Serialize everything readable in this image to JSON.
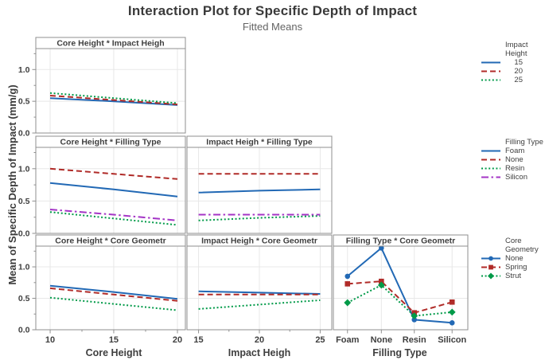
{
  "title": "Interaction Plot for Specific Depth of Impact",
  "subtitle": "Fitted Means",
  "ylabel": "Mean of Specific Depth of Impact (mm/g)",
  "colors": {
    "blue": "#2269B5",
    "red": "#B02B28",
    "green": "#009A48",
    "purple": "#A435C6",
    "panel_border": "#8F8F8F",
    "grid": "#E8E8E8",
    "text_dark": "#3F3F3F",
    "text_gray": "#646464"
  },
  "y_axis": {
    "tick_labels": [
      "0.0",
      "0.5",
      "1.0"
    ],
    "tick_values": [
      0.0,
      0.5,
      1.0
    ],
    "minor_tick_values": [
      0.25,
      0.75,
      1.25
    ],
    "ylim": [
      0,
      1.33
    ],
    "gridlines": [
      0.5,
      1.0
    ]
  },
  "x_axes": [
    {
      "title": "Core Height",
      "ticks": [
        "10",
        "15",
        "20"
      ]
    },
    {
      "title": "Impact Heigh",
      "ticks": [
        "15",
        "20",
        "25"
      ]
    },
    {
      "title": "Filling Type",
      "ticks": [
        "Foam",
        "None",
        "Resin",
        "Silicon"
      ]
    }
  ],
  "chart_data": [
    {
      "type": "line",
      "title": "Core Height * Impact Heigh",
      "row": 0,
      "col": 0,
      "x": [
        10,
        15,
        20
      ],
      "series": [
        {
          "name": "15",
          "color": "blue",
          "dash": "solid",
          "marker": "none",
          "values": [
            0.55,
            0.5,
            0.44
          ]
        },
        {
          "name": "20",
          "color": "red",
          "dash": "dashed",
          "marker": "none",
          "values": [
            0.59,
            0.52,
            0.45
          ]
        },
        {
          "name": "25",
          "color": "green",
          "dash": "dotted",
          "marker": "none",
          "values": [
            0.63,
            0.55,
            0.47
          ]
        }
      ]
    },
    {
      "type": "line",
      "title": "Core Height * Filling Type",
      "row": 1,
      "col": 0,
      "x": [
        10,
        15,
        20
      ],
      "series": [
        {
          "name": "Foam",
          "color": "blue",
          "dash": "solid",
          "marker": "none",
          "values": [
            0.78,
            0.68,
            0.57
          ]
        },
        {
          "name": "None",
          "color": "red",
          "dash": "dashed",
          "marker": "none",
          "values": [
            1.0,
            0.92,
            0.84
          ]
        },
        {
          "name": "Resin",
          "color": "green",
          "dash": "dotted",
          "marker": "none",
          "values": [
            0.33,
            0.23,
            0.13
          ]
        },
        {
          "name": "Silicon",
          "color": "purple",
          "dash": "dashdot",
          "marker": "none",
          "values": [
            0.37,
            0.29,
            0.2
          ]
        }
      ]
    },
    {
      "type": "line",
      "title": "Impact Heigh * Filling Type",
      "row": 1,
      "col": 1,
      "x": [
        15,
        20,
        25
      ],
      "series": [
        {
          "name": "Foam",
          "color": "blue",
          "dash": "solid",
          "marker": "none",
          "values": [
            0.63,
            0.66,
            0.68
          ]
        },
        {
          "name": "None",
          "color": "red",
          "dash": "dashed",
          "marker": "none",
          "values": [
            0.92,
            0.92,
            0.92
          ]
        },
        {
          "name": "Resin",
          "color": "green",
          "dash": "dotted",
          "marker": "none",
          "values": [
            0.2,
            0.24,
            0.27
          ]
        },
        {
          "name": "Silicon",
          "color": "purple",
          "dash": "dashdot",
          "marker": "none",
          "values": [
            0.29,
            0.29,
            0.29
          ]
        }
      ]
    },
    {
      "type": "line",
      "title": "Core Height * Core Geometr",
      "row": 2,
      "col": 0,
      "x": [
        10,
        15,
        20
      ],
      "series": [
        {
          "name": "None",
          "color": "blue",
          "dash": "solid",
          "marker": "none",
          "values": [
            0.7,
            0.6,
            0.49
          ]
        },
        {
          "name": "Spring",
          "color": "red",
          "dash": "dashed",
          "marker": "none",
          "values": [
            0.66,
            0.56,
            0.46
          ]
        },
        {
          "name": "Strut",
          "color": "green",
          "dash": "dotted",
          "marker": "none",
          "values": [
            0.51,
            0.41,
            0.31
          ]
        }
      ]
    },
    {
      "type": "line",
      "title": "Impact Heigh * Core Geometr",
      "row": 2,
      "col": 1,
      "x": [
        15,
        20,
        25
      ],
      "series": [
        {
          "name": "None",
          "color": "blue",
          "dash": "solid",
          "marker": "none",
          "values": [
            0.61,
            0.59,
            0.57
          ]
        },
        {
          "name": "Spring",
          "color": "red",
          "dash": "dashed",
          "marker": "none",
          "values": [
            0.56,
            0.56,
            0.56
          ]
        },
        {
          "name": "Strut",
          "color": "green",
          "dash": "dotted",
          "marker": "none",
          "values": [
            0.33,
            0.4,
            0.47
          ]
        }
      ]
    },
    {
      "type": "line",
      "title": "Filling Type * Core Geometr",
      "row": 2,
      "col": 2,
      "x": [
        "Foam",
        "None",
        "Resin",
        "Silicon"
      ],
      "series": [
        {
          "name": "None",
          "color": "blue",
          "dash": "solid",
          "marker": "circle",
          "values": [
            0.85,
            1.3,
            0.16,
            0.11
          ]
        },
        {
          "name": "Spring",
          "color": "red",
          "dash": "dashed",
          "marker": "square",
          "values": [
            0.73,
            0.77,
            0.27,
            0.44
          ]
        },
        {
          "name": "Strut",
          "color": "green",
          "dash": "dotted",
          "marker": "diamond",
          "values": [
            0.43,
            0.71,
            0.22,
            0.28
          ]
        }
      ]
    }
  ],
  "legends": [
    {
      "id": "impact-height",
      "title_lines": [
        "Impact",
        "Height"
      ],
      "align_labels": "right",
      "entries": [
        {
          "label": "15",
          "color": "blue",
          "dash": "solid",
          "marker": "none"
        },
        {
          "label": "20",
          "color": "red",
          "dash": "dashed",
          "marker": "none"
        },
        {
          "label": "25",
          "color": "green",
          "dash": "dotted",
          "marker": "none"
        }
      ]
    },
    {
      "id": "filling-type",
      "title_lines": [
        "Filling Type"
      ],
      "align_labels": "left",
      "entries": [
        {
          "label": "Foam",
          "color": "blue",
          "dash": "solid",
          "marker": "none"
        },
        {
          "label": "None",
          "color": "red",
          "dash": "dashed",
          "marker": "none"
        },
        {
          "label": "Resin",
          "color": "green",
          "dash": "dotted",
          "marker": "none"
        },
        {
          "label": "Silicon",
          "color": "purple",
          "dash": "dashdot",
          "marker": "none"
        }
      ]
    },
    {
      "id": "core-geometry",
      "title_lines": [
        "Core",
        "Geometry"
      ],
      "align_labels": "left",
      "entries": [
        {
          "label": "None",
          "color": "blue",
          "dash": "solid",
          "marker": "circle"
        },
        {
          "label": "Spring",
          "color": "red",
          "dash": "dashed",
          "marker": "square"
        },
        {
          "label": "Strut",
          "color": "green",
          "dash": "dotted",
          "marker": "diamond"
        }
      ]
    }
  ]
}
